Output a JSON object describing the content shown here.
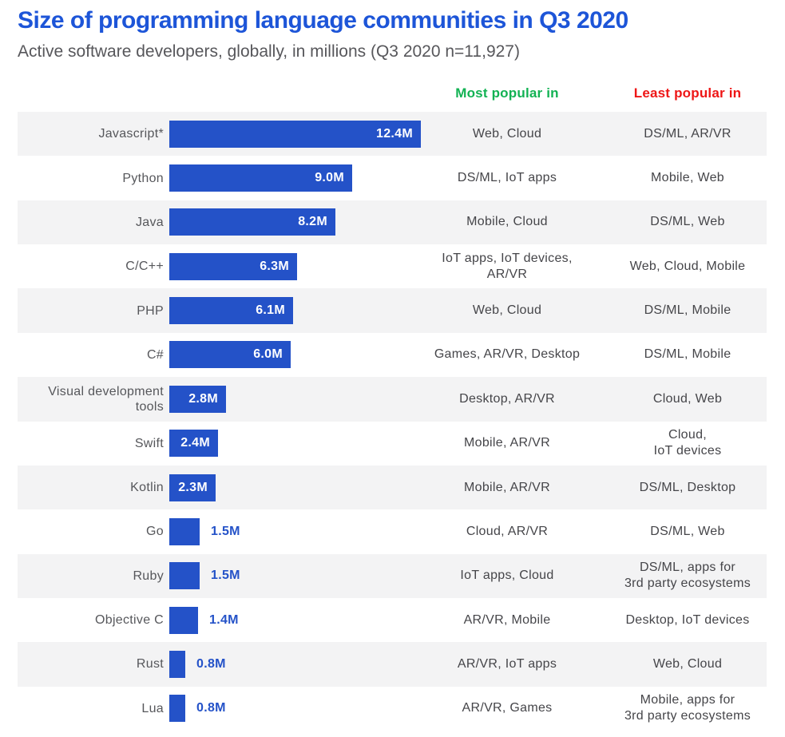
{
  "header": {
    "title": "Size of programming language communities in Q3 2020",
    "subtitle": "Active software developers, globally, in millions (Q3 2020 n=11,927)"
  },
  "columns": {
    "most_label": "Most popular in",
    "least_label": "Least popular in"
  },
  "colors": {
    "title_blue": "#1d55d8",
    "bar_blue": "#2452c8",
    "most_green": "#12b253",
    "least_red": "#ee1616",
    "row_alt_bg": "#f3f3f4",
    "label_gray": "#56575b",
    "cell_gray": "#454549"
  },
  "chart_data": {
    "type": "bar",
    "orientation": "horizontal",
    "title": "Size of programming language communities in Q3 2020",
    "subtitle": "Active software developers, globally, in millions (Q3 2020 n=11,927)",
    "unit": "millions of active developers",
    "xlim": [
      0,
      12.4
    ],
    "max_value": 12.4,
    "grid": false,
    "legend_position": "none",
    "categories": [
      "Javascript*",
      "Python",
      "Java",
      "C/C++",
      "PHP",
      "C#",
      "Visual development tools",
      "Swift",
      "Kotlin",
      "Go",
      "Ruby",
      "Objective C",
      "Rust",
      "Lua"
    ],
    "values": [
      12.4,
      9.0,
      8.2,
      6.3,
      6.1,
      6.0,
      2.8,
      2.4,
      2.3,
      1.5,
      1.5,
      1.4,
      0.8,
      0.8
    ],
    "rows": [
      {
        "language": "Javascript*",
        "value": 12.4,
        "value_label": "12.4M",
        "most_popular_in": "Web, Cloud",
        "least_popular_in": "DS/ML, AR/VR"
      },
      {
        "language": "Python",
        "value": 9.0,
        "value_label": "9.0M",
        "most_popular_in": "DS/ML, IoT apps",
        "least_popular_in": "Mobile, Web"
      },
      {
        "language": "Java",
        "value": 8.2,
        "value_label": "8.2M",
        "most_popular_in": "Mobile, Cloud",
        "least_popular_in": "DS/ML, Web"
      },
      {
        "language": "C/C++",
        "value": 6.3,
        "value_label": "6.3M",
        "most_popular_in": "IoT apps, IoT devices,\nAR/VR",
        "least_popular_in": "Web, Cloud, Mobile"
      },
      {
        "language": "PHP",
        "value": 6.1,
        "value_label": "6.1M",
        "most_popular_in": "Web, Cloud",
        "least_popular_in": "DS/ML, Mobile"
      },
      {
        "language": "C#",
        "value": 6.0,
        "value_label": "6.0M",
        "most_popular_in": "Games, AR/VR, Desktop",
        "least_popular_in": "DS/ML, Mobile"
      },
      {
        "language": "Visual development tools",
        "value": 2.8,
        "value_label": "2.8M",
        "most_popular_in": "Desktop, AR/VR",
        "least_popular_in": "Cloud, Web"
      },
      {
        "language": "Swift",
        "value": 2.4,
        "value_label": "2.4M",
        "most_popular_in": "Mobile, AR/VR",
        "least_popular_in": "Cloud,\nIoT devices"
      },
      {
        "language": "Kotlin",
        "value": 2.3,
        "value_label": "2.3M",
        "most_popular_in": "Mobile, AR/VR",
        "least_popular_in": "DS/ML, Desktop"
      },
      {
        "language": "Go",
        "value": 1.5,
        "value_label": "1.5M",
        "most_popular_in": "Cloud, AR/VR",
        "least_popular_in": "DS/ML, Web"
      },
      {
        "language": "Ruby",
        "value": 1.5,
        "value_label": "1.5M",
        "most_popular_in": "IoT apps, Cloud",
        "least_popular_in": "DS/ML, apps for\n3rd party ecosystems"
      },
      {
        "language": "Objective C",
        "value": 1.4,
        "value_label": "1.4M",
        "most_popular_in": "AR/VR, Mobile",
        "least_popular_in": "Desktop, IoT devices"
      },
      {
        "language": "Rust",
        "value": 0.8,
        "value_label": "0.8M",
        "most_popular_in": "AR/VR, IoT apps",
        "least_popular_in": "Web, Cloud"
      },
      {
        "language": "Lua",
        "value": 0.8,
        "value_label": "0.8M",
        "most_popular_in": "AR/VR, Games",
        "least_popular_in": "Mobile, apps for\n3rd party ecosystems"
      }
    ]
  }
}
